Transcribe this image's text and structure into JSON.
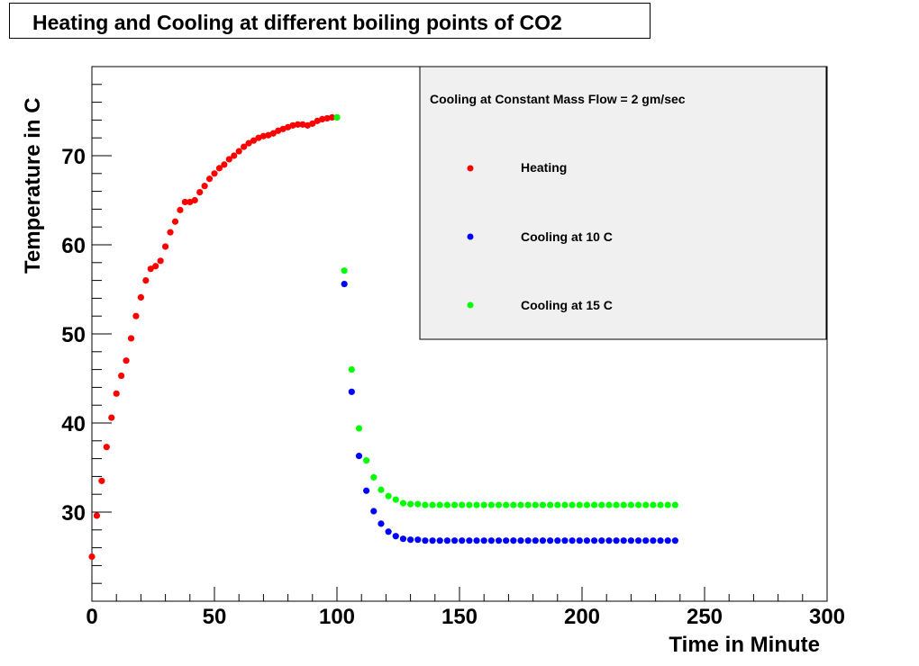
{
  "chart_data": {
    "type": "scatter",
    "title": "Heating and Cooling at different boiling points of CO2",
    "xlabel": "Time in Minute",
    "ylabel": "Temperature in C",
    "xlim": [
      0,
      300
    ],
    "ylim": [
      20,
      80
    ],
    "x_ticks": [
      0,
      50,
      100,
      150,
      200,
      250,
      300
    ],
    "y_ticks": [
      30,
      40,
      50,
      60,
      70
    ],
    "grid": false,
    "legend": {
      "header": "Cooling at Constant Mass Flow = 2 gm/sec",
      "position": "top-right"
    },
    "series": [
      {
        "name": "Heating",
        "color": "#ff0000",
        "x": [
          0,
          2,
          4,
          6,
          8,
          10,
          12,
          14,
          16,
          18,
          20,
          22,
          24,
          26,
          28,
          30,
          32,
          34,
          36,
          38,
          40,
          42,
          44,
          46,
          48,
          50,
          52,
          54,
          56,
          58,
          60,
          62,
          64,
          66,
          68,
          70,
          72,
          74,
          76,
          78,
          80,
          82,
          84,
          86,
          88,
          90,
          92,
          94,
          96,
          98,
          100
        ],
        "y": [
          25,
          29.6,
          33.5,
          37.3,
          40.6,
          43.3,
          45.3,
          47,
          49.5,
          52,
          54.1,
          56,
          57.3,
          57.6,
          58.2,
          59.8,
          61.4,
          62.6,
          63.9,
          64.8,
          64.8,
          65,
          65.9,
          66.6,
          67.4,
          68,
          68.6,
          69,
          69.6,
          70,
          70.5,
          71,
          71.4,
          71.7,
          72,
          72.2,
          72.3,
          72.5,
          72.8,
          73,
          73.2,
          73.4,
          73.5,
          73.5,
          73.4,
          73.6,
          73.9,
          74.1,
          74.2,
          74.3,
          74.3
        ]
      },
      {
        "name": "Cooling at 10 C",
        "color": "#0000ff",
        "x": [
          103,
          106,
          109,
          112,
          115,
          118,
          121,
          124,
          127,
          130,
          133,
          136,
          139,
          142,
          145,
          148,
          151,
          154,
          157,
          160,
          163,
          166,
          169,
          172,
          175,
          178,
          181,
          184,
          187,
          190,
          193,
          196,
          199,
          202,
          205,
          208,
          211,
          214,
          217,
          220,
          223,
          226,
          229,
          232,
          235,
          238
        ],
        "y": [
          55.6,
          43.5,
          36.3,
          32.4,
          30.1,
          28.7,
          27.8,
          27.3,
          27,
          26.9,
          26.9,
          26.8,
          26.8,
          26.8,
          26.8,
          26.8,
          26.8,
          26.8,
          26.8,
          26.8,
          26.8,
          26.8,
          26.8,
          26.8,
          26.8,
          26.8,
          26.8,
          26.8,
          26.8,
          26.8,
          26.8,
          26.8,
          26.8,
          26.8,
          26.8,
          26.8,
          26.8,
          26.8,
          26.8,
          26.8,
          26.8,
          26.8,
          26.8,
          26.8,
          26.8,
          26.8
        ]
      },
      {
        "name": "Cooling at 15 C",
        "color": "#00ff00",
        "x": [
          100,
          103,
          106,
          109,
          112,
          115,
          118,
          121,
          124,
          127,
          130,
          133,
          136,
          139,
          142,
          145,
          148,
          151,
          154,
          157,
          160,
          163,
          166,
          169,
          172,
          175,
          178,
          181,
          184,
          187,
          190,
          193,
          196,
          199,
          202,
          205,
          208,
          211,
          214,
          217,
          220,
          223,
          226,
          229,
          232,
          235,
          238
        ],
        "y": [
          74.3,
          57.1,
          46,
          39.4,
          35.8,
          33.9,
          32.5,
          31.8,
          31.4,
          31,
          30.9,
          30.9,
          30.8,
          30.8,
          30.8,
          30.8,
          30.8,
          30.8,
          30.8,
          30.8,
          30.8,
          30.8,
          30.8,
          30.8,
          30.8,
          30.8,
          30.8,
          30.8,
          30.8,
          30.8,
          30.8,
          30.8,
          30.8,
          30.8,
          30.8,
          30.8,
          30.8,
          30.8,
          30.8,
          30.8,
          30.8,
          30.8,
          30.8,
          30.8,
          30.8,
          30.8,
          30.8
        ]
      }
    ]
  }
}
